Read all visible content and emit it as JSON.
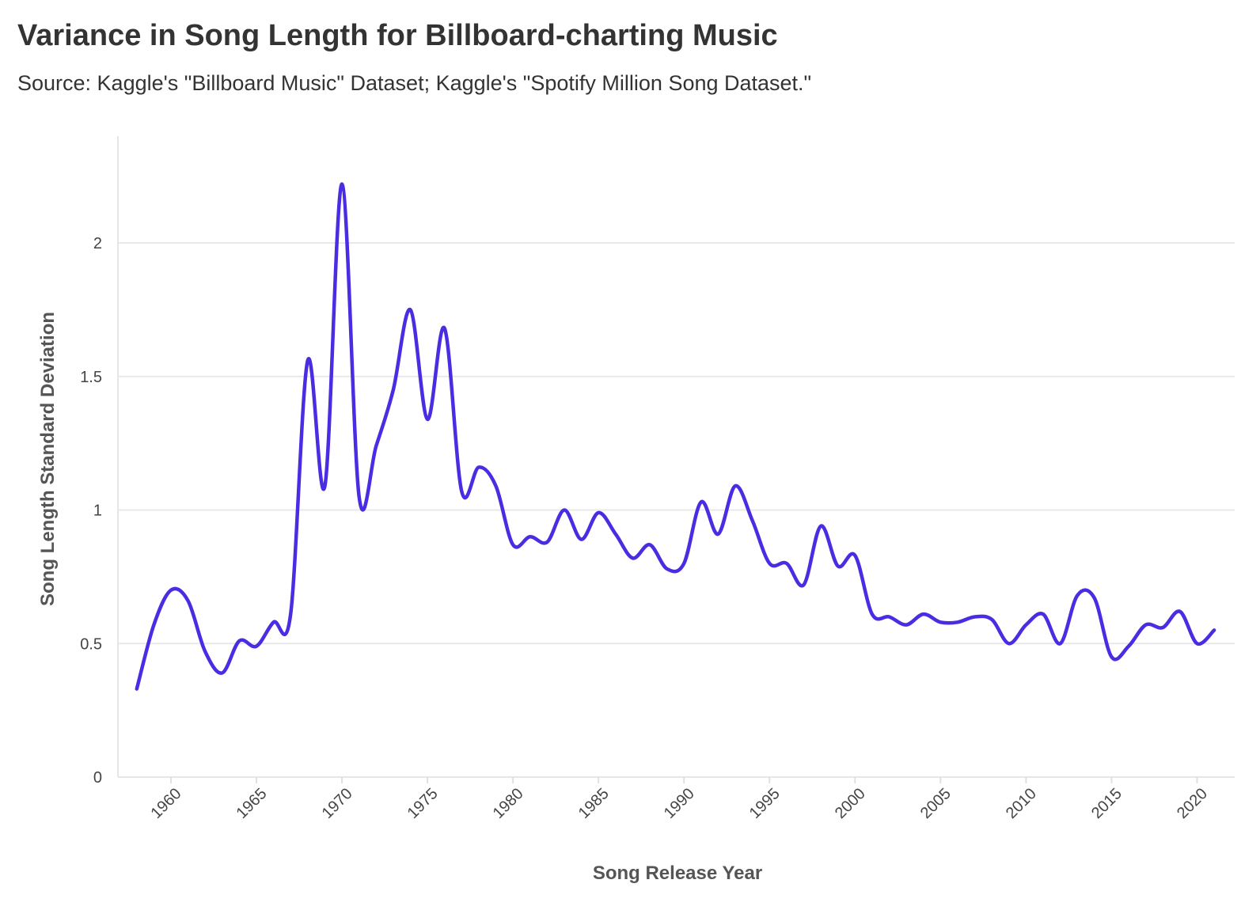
{
  "chart_data": {
    "type": "line",
    "title": "Variance in Song Length for Billboard-charting Music",
    "subtitle": "Source: Kaggle's \"Billboard Music\" Dataset; Kaggle's \"Spotify Million Song Dataset.\"",
    "xlabel": "Song Release Year",
    "ylabel": "Song Length Standard Deviation",
    "xlim": [
      1956.9,
      2022.2
    ],
    "ylim": [
      0,
      2.4
    ],
    "x_ticks": [
      "1960",
      "1965",
      "1970",
      "1975",
      "1980",
      "1985",
      "1990",
      "1995",
      "2000",
      "2005",
      "2010",
      "2015",
      "2020"
    ],
    "y_ticks": [
      "0",
      "0.5",
      "1",
      "1.5",
      "2"
    ],
    "grid": true,
    "line_color": "#4a2de3",
    "series": [
      {
        "x": [
          1958,
          1959,
          1960,
          1961,
          1962,
          1963,
          1964,
          1965,
          1966,
          1967,
          1968,
          1969,
          1970,
          1971,
          1972,
          1973,
          1974,
          1975,
          1976,
          1977,
          1978,
          1979,
          1980,
          1981,
          1982,
          1983,
          1984,
          1985,
          1986,
          1987,
          1988,
          1989,
          1990,
          1991,
          1992,
          1993,
          1994,
          1995,
          1996,
          1997,
          1998,
          1999,
          2000,
          2001,
          2002,
          2003,
          2004,
          2005,
          2006,
          2007,
          2008,
          2009,
          2010,
          2011,
          2012,
          2013,
          2014,
          2015,
          2016,
          2017,
          2018,
          2019,
          2020,
          2021
        ],
        "values": [
          0.33,
          0.57,
          0.7,
          0.66,
          0.47,
          0.39,
          0.51,
          0.49,
          0.58,
          0.61,
          1.56,
          1.09,
          2.22,
          1.05,
          1.24,
          1.45,
          1.75,
          1.34,
          1.68,
          1.07,
          1.16,
          1.09,
          0.87,
          0.9,
          0.88,
          1.0,
          0.89,
          0.99,
          0.91,
          0.82,
          0.87,
          0.78,
          0.8,
          1.03,
          0.91,
          1.09,
          0.96,
          0.8,
          0.8,
          0.72,
          0.94,
          0.79,
          0.83,
          0.61,
          0.6,
          0.57,
          0.61,
          0.58,
          0.58,
          0.6,
          0.59,
          0.5,
          0.57,
          0.61,
          0.5,
          0.68,
          0.67,
          0.45,
          0.49,
          0.57,
          0.56,
          0.62,
          0.5,
          0.55
        ]
      }
    ]
  }
}
